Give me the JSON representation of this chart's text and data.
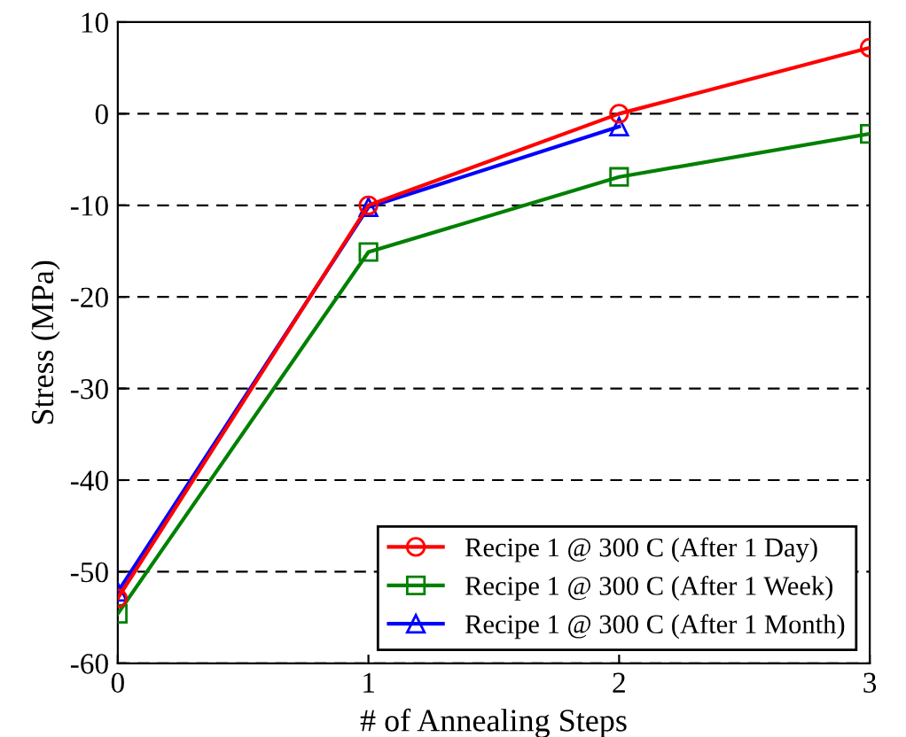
{
  "chart_data": {
    "type": "line",
    "xlabel": "# of Annealing Steps",
    "ylabel": "Stress (MPa)",
    "x": [
      0,
      1,
      2,
      3
    ],
    "xlim": [
      0,
      3
    ],
    "xticks": [
      0,
      1,
      2,
      3
    ],
    "ylim": [
      -60,
      10
    ],
    "yticks": [
      -60,
      -50,
      -40,
      -30,
      -20,
      -10,
      0,
      10
    ],
    "grid": "y",
    "legend": "bottom right",
    "series": [
      {
        "name": "Recipe 1 @ 300 C (After 1 Day)",
        "color": "#ff0000",
        "marker": "circle",
        "values": [
          -52.9,
          -10,
          0,
          7.2
        ]
      },
      {
        "name": "Recipe 1 @ 300 C (After 1 Week)",
        "color": "#008000",
        "marker": "square",
        "values": [
          -54.6,
          -15.1,
          -6.9,
          -2.2
        ]
      },
      {
        "name": "Recipe 1 @ 300 C (After 1 Month)",
        "color": "#0000ff",
        "marker": "triangle",
        "x": [
          0,
          1,
          2
        ],
        "values": [
          -52.2,
          -10.2,
          -1.4
        ]
      }
    ]
  }
}
